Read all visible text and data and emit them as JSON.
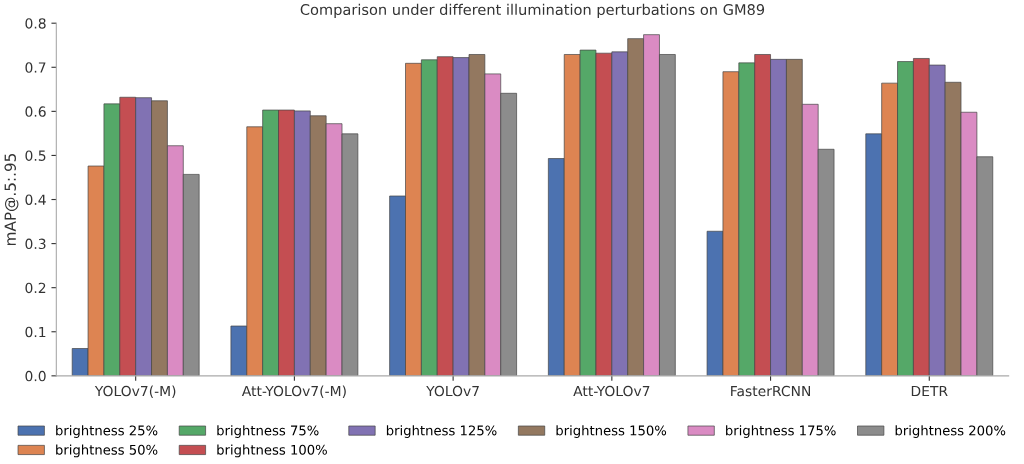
{
  "chart_data": {
    "type": "bar",
    "title": "Comparison under different illumination perturbations on GM89",
    "ylabel": "mAP@.5:.95",
    "categories": [
      "YOLOv7(-M)",
      "Att-YOLOv7(-M)",
      "YOLOv7",
      "Att-YOLOv7",
      "FasterRCNN",
      "DETR"
    ],
    "ylim": [
      0,
      0.8
    ],
    "yticks": [
      {
        "value": 0,
        "label": "0.0"
      },
      0.1,
      0.2,
      0.3,
      0.4,
      0.5,
      0.6,
      0.7,
      0.8
    ],
    "grid": false,
    "legend": "bottom",
    "series": [
      {
        "name": "brightness 25%",
        "color": "#4c72b0",
        "values": [
          0.062,
          0.113,
          0.408,
          0.493,
          0.328,
          0.549
        ]
      },
      {
        "name": "brightness 50%",
        "color": "#dd8452",
        "values": [
          0.476,
          0.565,
          0.709,
          0.729,
          0.69,
          0.664
        ]
      },
      {
        "name": "brightness 75%",
        "color": "#55a868",
        "values": [
          0.617,
          0.603,
          0.717,
          0.739,
          0.71,
          0.713
        ]
      },
      {
        "name": "brightness 100%",
        "color": "#c44e52",
        "values": [
          0.632,
          0.603,
          0.724,
          0.732,
          0.729,
          0.72
        ]
      },
      {
        "name": "brightness 125%",
        "color": "#8172b3",
        "values": [
          0.631,
          0.601,
          0.722,
          0.735,
          0.718,
          0.705
        ]
      },
      {
        "name": "brightness 150%",
        "color": "#937860",
        "values": [
          0.624,
          0.59,
          0.729,
          0.765,
          0.718,
          0.666
        ]
      },
      {
        "name": "brightness 175%",
        "color": "#da8bc3",
        "values": [
          0.522,
          0.572,
          0.685,
          0.774,
          0.616,
          0.598
        ]
      },
      {
        "name": "brightness 200%",
        "color": "#8c8c8c",
        "values": [
          0.457,
          0.549,
          0.641,
          0.729,
          0.514,
          0.497
        ]
      }
    ]
  }
}
